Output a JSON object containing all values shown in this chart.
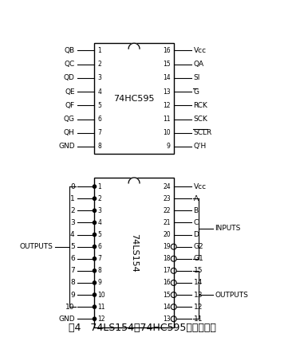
{
  "bg_color": "#ffffff",
  "title": "图4   74LS154和74HC595管脚示意图",
  "title_fontsize": 9,
  "ic1": {
    "label": "74LS154",
    "left_pins": [
      {
        "num": "1",
        "label": "0"
      },
      {
        "num": "2",
        "label": "1"
      },
      {
        "num": "3",
        "label": "2"
      },
      {
        "num": "4",
        "label": "3"
      },
      {
        "num": "5",
        "label": "4"
      },
      {
        "num": "6",
        "label": "5"
      },
      {
        "num": "7",
        "label": "6"
      },
      {
        "num": "8",
        "label": "7"
      },
      {
        "num": "9",
        "label": "8"
      },
      {
        "num": "10",
        "label": "9"
      },
      {
        "num": "11",
        "label": "10"
      },
      {
        "num": "12",
        "label": "GND"
      }
    ],
    "right_pins": [
      {
        "num": "24",
        "label": "Vcc",
        "circle": false
      },
      {
        "num": "23",
        "label": "A",
        "circle": false
      },
      {
        "num": "22",
        "label": "B",
        "circle": false
      },
      {
        "num": "21",
        "label": "C",
        "circle": false
      },
      {
        "num": "20",
        "label": "D",
        "circle": false
      },
      {
        "num": "19",
        "label": "G2",
        "circle": true
      },
      {
        "num": "18",
        "label": "G1",
        "circle": true
      },
      {
        "num": "17",
        "label": "15",
        "circle": true
      },
      {
        "num": "16",
        "label": "14",
        "circle": true
      },
      {
        "num": "15",
        "label": "13",
        "circle": true
      },
      {
        "num": "14",
        "label": "12",
        "circle": true
      },
      {
        "num": "13",
        "label": "11",
        "circle": true
      }
    ],
    "left_bracket": {
      "label": "OUTPUTS",
      "first_idx": 0,
      "last_idx": 10
    },
    "right_bracket1": {
      "label": "INPUTS",
      "first_idx": 1,
      "last_idx": 6
    },
    "right_bracket2": {
      "label": "OUTPUTS",
      "first_idx": 7,
      "last_idx": 11
    }
  },
  "ic2": {
    "label": "74HC595",
    "left_pins": [
      {
        "num": "1",
        "label": "QB"
      },
      {
        "num": "2",
        "label": "QC"
      },
      {
        "num": "3",
        "label": "QD"
      },
      {
        "num": "4",
        "label": "QE"
      },
      {
        "num": "5",
        "label": "QF"
      },
      {
        "num": "6",
        "label": "QG"
      },
      {
        "num": "7",
        "label": "QH"
      },
      {
        "num": "8",
        "label": "GND"
      }
    ],
    "right_pins": [
      {
        "num": "16",
        "label": "Vcc",
        "bar": false
      },
      {
        "num": "15",
        "label": "QA",
        "bar": false
      },
      {
        "num": "14",
        "label": "SI",
        "bar": false
      },
      {
        "num": "13",
        "label": "G",
        "bar": true
      },
      {
        "num": "12",
        "label": "RCK",
        "bar": false
      },
      {
        "num": "11",
        "label": "SCK",
        "bar": false
      },
      {
        "num": "10",
        "label": "SCLR",
        "bar": true
      },
      {
        "num": "9",
        "label": "Q'H",
        "bar": false
      }
    ]
  }
}
